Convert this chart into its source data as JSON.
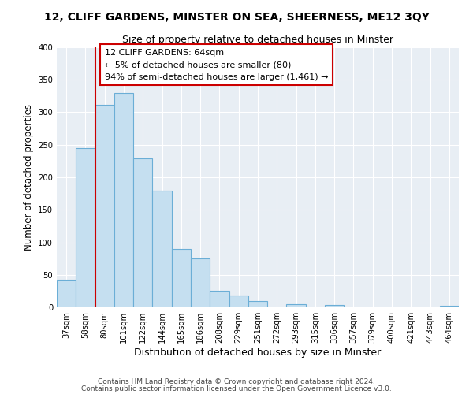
{
  "title": "12, CLIFF GARDENS, MINSTER ON SEA, SHEERNESS, ME12 3QY",
  "subtitle": "Size of property relative to detached houses in Minster",
  "xlabel": "Distribution of detached houses by size in Minster",
  "ylabel": "Number of detached properties",
  "bar_labels": [
    "37sqm",
    "58sqm",
    "80sqm",
    "101sqm",
    "122sqm",
    "144sqm",
    "165sqm",
    "186sqm",
    "208sqm",
    "229sqm",
    "251sqm",
    "272sqm",
    "293sqm",
    "315sqm",
    "336sqm",
    "357sqm",
    "379sqm",
    "400sqm",
    "421sqm",
    "443sqm",
    "464sqm"
  ],
  "bar_values": [
    43,
    245,
    311,
    330,
    229,
    179,
    90,
    75,
    25,
    18,
    10,
    0,
    5,
    0,
    4,
    0,
    0,
    0,
    0,
    0,
    3
  ],
  "bar_color": "#c5dff0",
  "bar_edge_color": "#6baed6",
  "property_line_x": 1.5,
  "property_sqm": 64,
  "property_label": "12 CLIFF GARDENS: 64sqm",
  "pct_smaller": 5,
  "count_smaller": 80,
  "pct_larger_semi": 94,
  "count_larger_semi": 1461,
  "annotation_box_color": "#ffffff",
  "annotation_box_edge": "#cc0000",
  "line_color": "#cc0000",
  "ylim": [
    0,
    400
  ],
  "bg_color": "#e8eef4",
  "grid_color": "#ffffff",
  "footer1": "Contains HM Land Registry data © Crown copyright and database right 2024.",
  "footer2": "Contains public sector information licensed under the Open Government Licence v3.0."
}
